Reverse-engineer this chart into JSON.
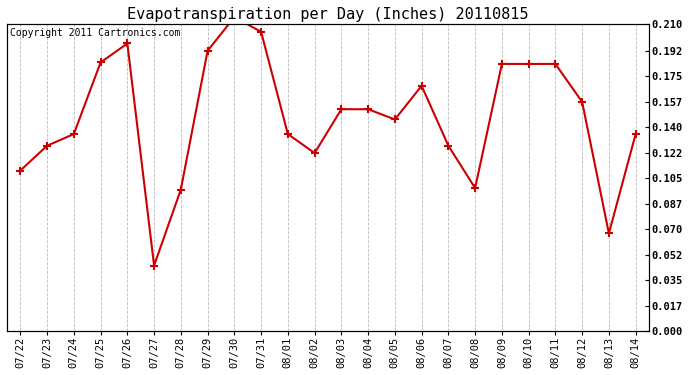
{
  "title": "Evapotranspiration per Day (Inches) 20110815",
  "copyright_text": "Copyright 2011 Cartronics.com",
  "x_labels": [
    "07/22",
    "07/23",
    "07/24",
    "07/25",
    "07/26",
    "07/27",
    "07/28",
    "07/29",
    "07/30",
    "07/31",
    "08/01",
    "08/02",
    "08/03",
    "08/04",
    "08/05",
    "08/06",
    "08/07",
    "08/08",
    "08/09",
    "08/10",
    "08/11",
    "08/12",
    "08/13",
    "08/14"
  ],
  "y_values": [
    0.11,
    0.127,
    0.135,
    0.184,
    0.197,
    0.045,
    0.097,
    0.192,
    0.215,
    0.205,
    0.135,
    0.122,
    0.152,
    0.152,
    0.145,
    0.168,
    0.127,
    0.098,
    0.183,
    0.183,
    0.183,
    0.157,
    0.067,
    0.135
  ],
  "line_color": "#cc0000",
  "marker": "+",
  "marker_size": 6,
  "marker_linewidth": 1.5,
  "line_width": 1.5,
  "y_ticks": [
    0.0,
    0.017,
    0.035,
    0.052,
    0.07,
    0.087,
    0.105,
    0.122,
    0.14,
    0.157,
    0.175,
    0.192,
    0.21
  ],
  "y_min": 0.0,
  "y_max": 0.21,
  "bg_color": "#ffffff",
  "plot_bg_color": "#ffffff",
  "grid_color": "#bbbbbb",
  "title_fontsize": 11,
  "tick_fontsize": 7.5,
  "copyright_fontsize": 7
}
